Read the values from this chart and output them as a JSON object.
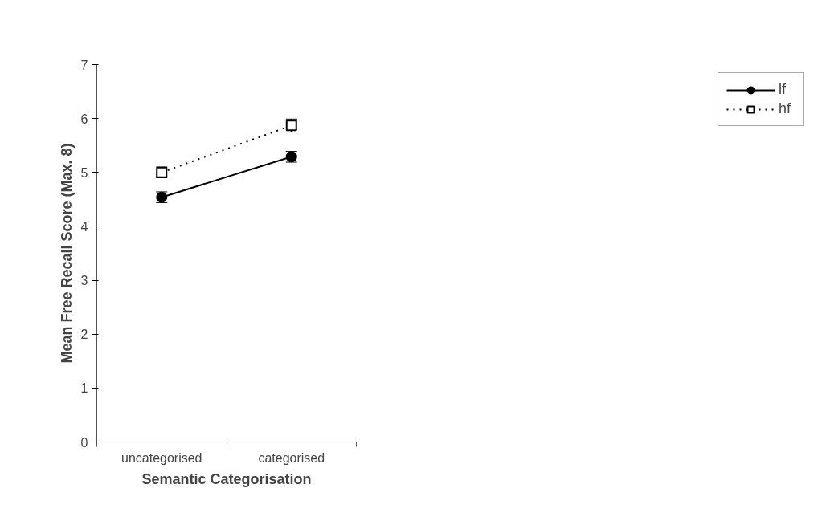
{
  "chart_data": {
    "type": "line",
    "xlabel": "Semantic Categorisation",
    "ylabel": "Mean Free Recall Score (Max. 8)",
    "categories": [
      "uncategorised",
      "categorised"
    ],
    "series": [
      {
        "name": "lf",
        "color": "#000000",
        "values": [
          4.54,
          5.29
        ],
        "errors": [
          0.1,
          0.1
        ],
        "marker": "circle",
        "line_style": "solid"
      },
      {
        "name": "hf",
        "color": "#000000",
        "values": [
          5.0,
          5.87
        ],
        "errors": [
          0.1,
          0.12
        ],
        "marker": "square",
        "line_style": "dotted"
      }
    ],
    "ylim": [
      0,
      7
    ],
    "yticks": [
      0,
      1,
      2,
      3,
      4,
      5,
      6,
      7
    ],
    "grid": false,
    "legend": "right"
  }
}
